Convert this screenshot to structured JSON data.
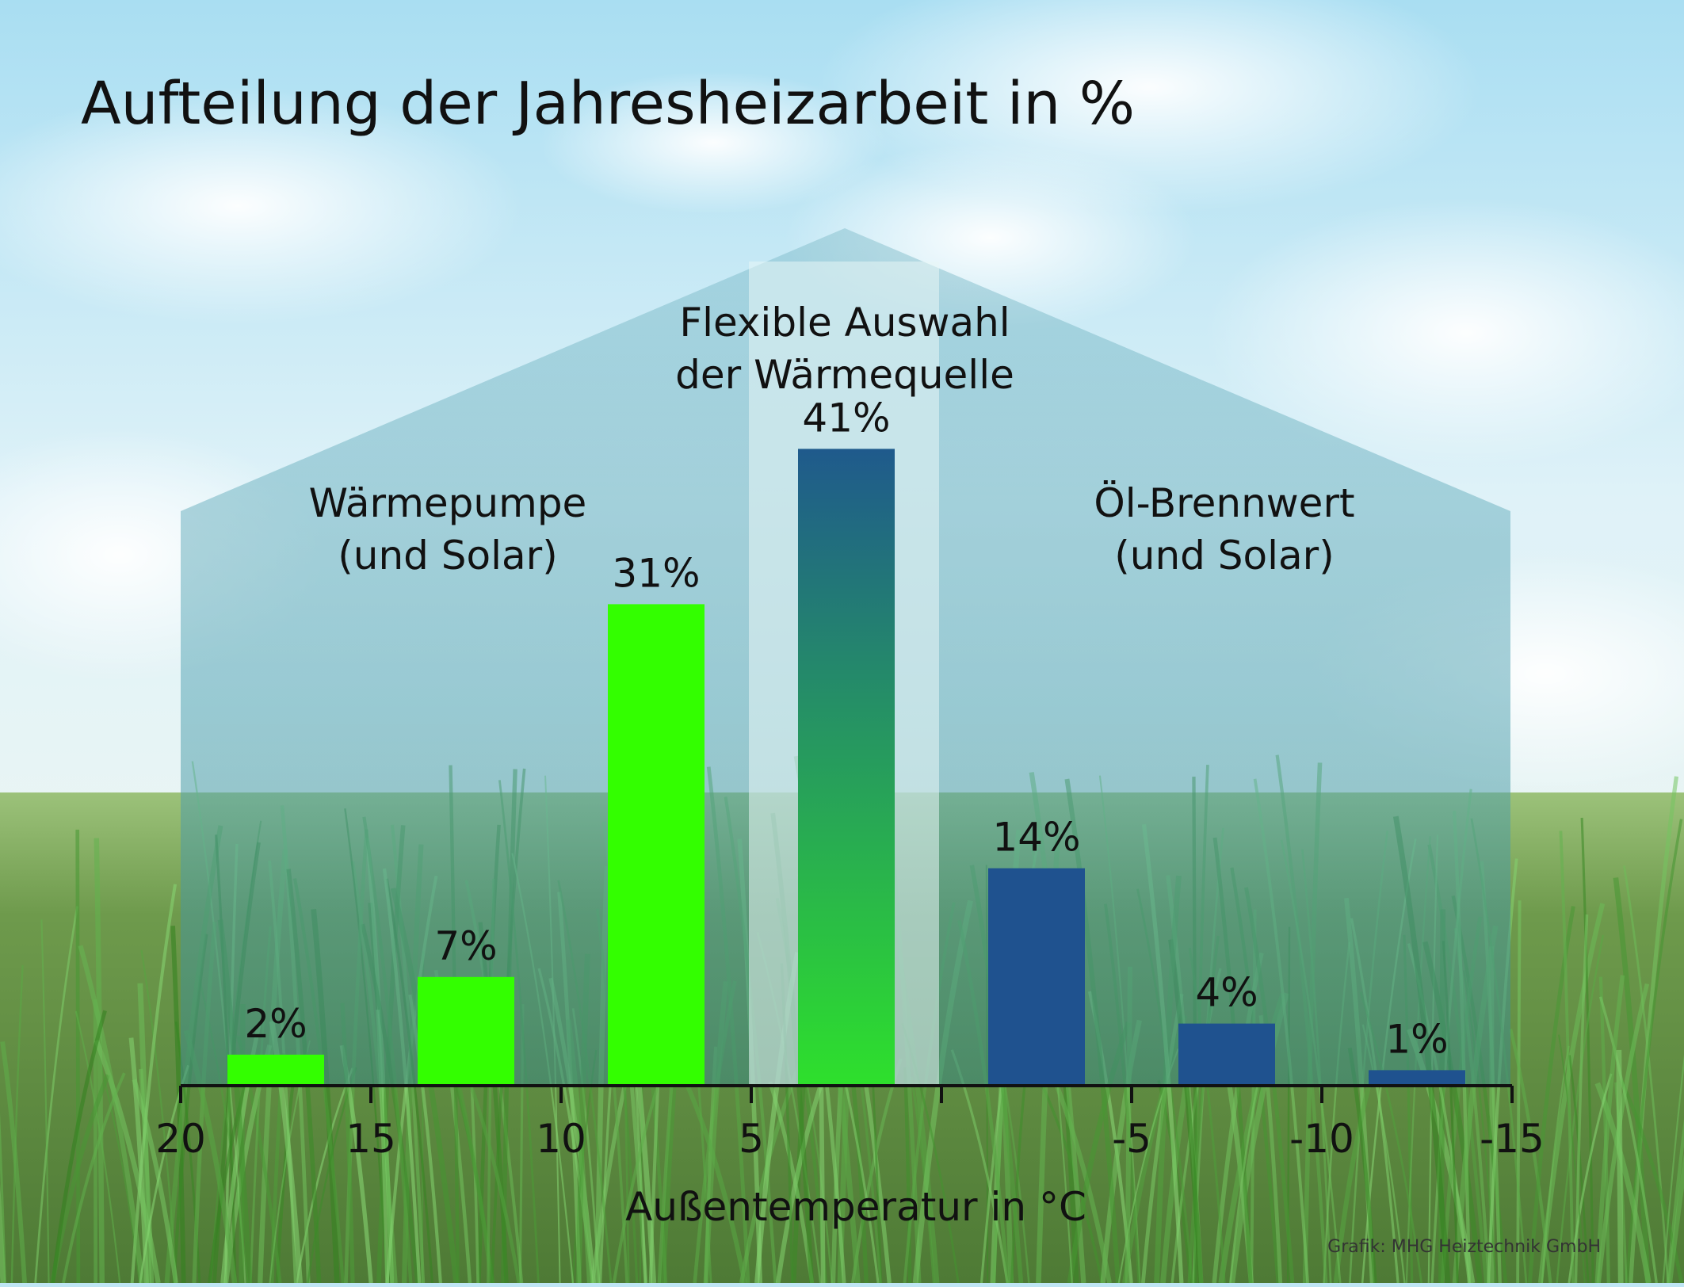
{
  "chart_data": {
    "type": "bar",
    "title": "Aufteilung der Jahresheizarbeit in %",
    "xlabel": "Außentemperatur in °C",
    "ylabel": "",
    "x_ticks": [
      "20",
      "15",
      "10",
      "5",
      "",
      "-5",
      "-10",
      "-15"
    ],
    "categories": [
      "20 bis 15",
      "15 bis 10",
      "10 bis 5",
      "5 bis 0",
      "0 bis -5",
      "-5 bis -10",
      "-10 bis -15"
    ],
    "values": [
      2,
      7,
      31,
      41,
      14,
      4,
      1
    ],
    "value_labels": [
      "2%",
      "7%",
      "31%",
      "41%",
      "14%",
      "4%",
      "1%"
    ],
    "ylim": [
      0,
      50
    ],
    "grid": false,
    "legend": "none",
    "bar_colors": [
      "#33ff00",
      "#33ff00",
      "#33ff00",
      "gradient-green-blue",
      "#1f528f",
      "#1f528f",
      "#1f528f"
    ],
    "zones": [
      {
        "label_lines": [
          "Wärmepumpe",
          "(und Solar)"
        ]
      },
      {
        "label_lines": [
          "Flexible Auswahl",
          "der Wärmequelle"
        ]
      },
      {
        "label_lines": [
          "Öl-Brennwert",
          "(und Solar)"
        ]
      }
    ],
    "credit": "Grafik: MHG Heiztechnik GmbH"
  },
  "colors": {
    "heat_pump": "#33ff00",
    "oil": "#1f528f",
    "gradient_top": "#1f5a8c",
    "gradient_bottom": "#2ee02c",
    "sky": "#bfe6f4",
    "grass": "#6b9a4a",
    "text": "#111111"
  }
}
